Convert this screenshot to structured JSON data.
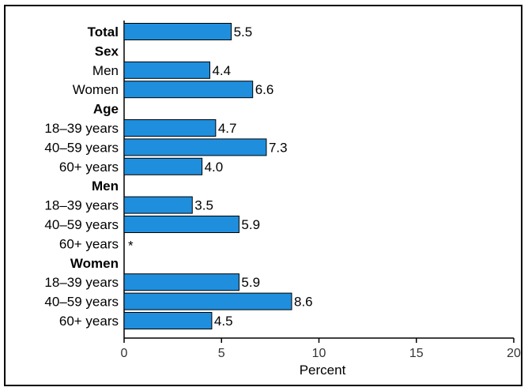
{
  "chart_data": {
    "type": "bar",
    "orientation": "horizontal",
    "title": "",
    "xlabel": "Percent",
    "ylabel": "",
    "xlim": [
      0,
      20
    ],
    "xticks": [
      0,
      5,
      10,
      15,
      20
    ],
    "bar_color": "#1f8fdd",
    "grid": false,
    "rows": [
      {
        "label": "Total",
        "group": true,
        "value": 5.5,
        "text": "5.5"
      },
      {
        "label": "Sex",
        "heading": true
      },
      {
        "label": "Men",
        "value": 4.4,
        "text": "4.4"
      },
      {
        "label": "Women",
        "value": 6.6,
        "text": "6.6"
      },
      {
        "label": "Age",
        "heading": true
      },
      {
        "label": "18–39 years",
        "value": 4.7,
        "text": "4.7"
      },
      {
        "label": "40–59 years",
        "value": 7.3,
        "text": "7.3"
      },
      {
        "label": "60+ years",
        "value": 4.0,
        "text": "4.0"
      },
      {
        "label": "Men",
        "heading": true
      },
      {
        "label": "18–39 years",
        "value": 3.5,
        "text": "3.5"
      },
      {
        "label": "40–59 years",
        "value": 5.9,
        "text": "5.9"
      },
      {
        "label": "60+ years",
        "value": null,
        "text": "*"
      },
      {
        "label": "Women",
        "heading": true
      },
      {
        "label": "18–39 years",
        "value": 5.9,
        "text": "5.9"
      },
      {
        "label": "40–59 years",
        "value": 8.6,
        "text": "8.6"
      },
      {
        "label": "60+ years",
        "value": 4.5,
        "text": "4.5"
      }
    ]
  }
}
